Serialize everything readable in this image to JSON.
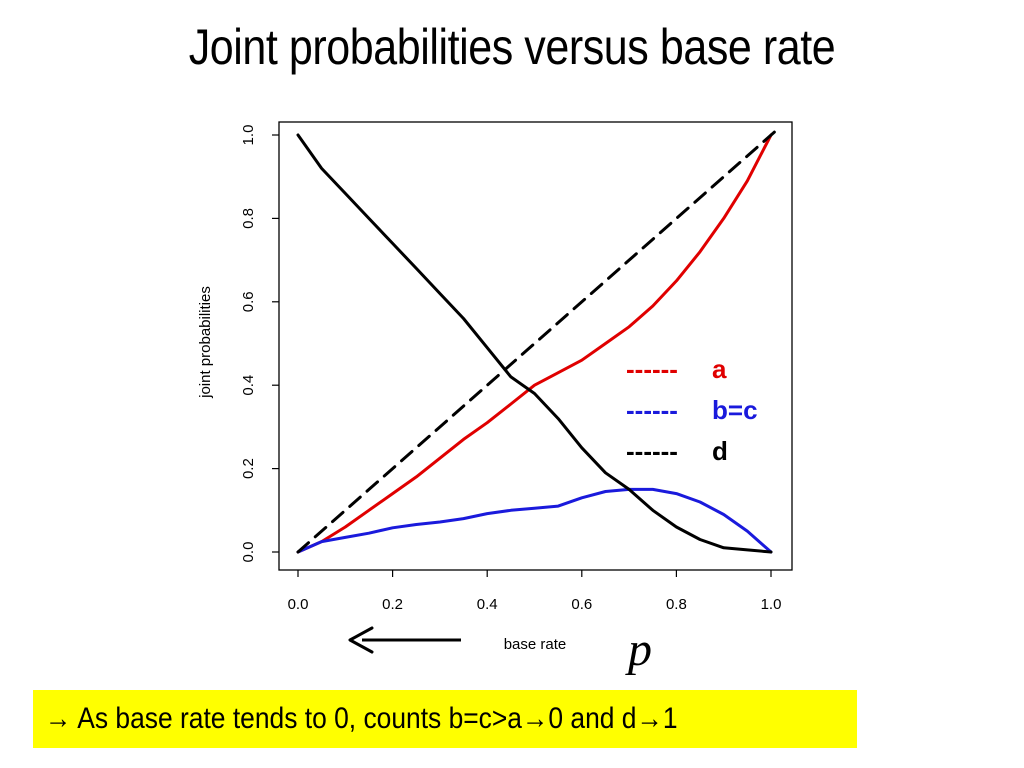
{
  "slide": {
    "title": "Joint probabilities versus base rate",
    "callout": {
      "prefix_arrow": "→",
      "text_1": " As base rate tends to 0, counts b=c>a",
      "arrow_2": "→",
      "text_2": "0 and d",
      "arrow_3": "→",
      "text_3": "1",
      "background": "#ffff00"
    },
    "p_symbol": "p"
  },
  "chart_data": {
    "type": "line",
    "xlabel": "base rate",
    "ylabel": "joint probabilities",
    "xlim": [
      0,
      1
    ],
    "ylim": [
      0,
      1
    ],
    "x_ticks": [
      "0.0",
      "0.2",
      "0.4",
      "0.6",
      "0.8",
      "1.0"
    ],
    "y_ticks": [
      "0.0",
      "0.2",
      "0.4",
      "0.6",
      "0.8",
      "1.0"
    ],
    "grid": false,
    "legend_position": "right",
    "legend": [
      {
        "marker": "------",
        "label": "a",
        "color": "#e00000"
      },
      {
        "marker": "------",
        "label": "b=c",
        "color": "#1a1adc"
      },
      {
        "marker": "------",
        "label": "d",
        "color": "#000000"
      }
    ],
    "series": [
      {
        "key": "a",
        "color": "#e00000",
        "dash": "solid",
        "x": [
          0.0,
          0.05,
          0.1,
          0.15,
          0.2,
          0.25,
          0.3,
          0.35,
          0.4,
          0.45,
          0.5,
          0.55,
          0.6,
          0.65,
          0.7,
          0.75,
          0.8,
          0.85,
          0.9,
          0.95,
          1.0
        ],
        "y": [
          0.0,
          0.025,
          0.06,
          0.1,
          0.14,
          0.18,
          0.225,
          0.27,
          0.31,
          0.355,
          0.4,
          0.43,
          0.46,
          0.5,
          0.54,
          0.59,
          0.65,
          0.72,
          0.8,
          0.89,
          1.0
        ]
      },
      {
        "key": "b=c",
        "color": "#1a1adc",
        "dash": "solid",
        "x": [
          0.0,
          0.05,
          0.1,
          0.15,
          0.2,
          0.25,
          0.3,
          0.35,
          0.4,
          0.45,
          0.5,
          0.55,
          0.6,
          0.65,
          0.7,
          0.75,
          0.8,
          0.85,
          0.9,
          0.95,
          1.0
        ],
        "y": [
          0.0,
          0.025,
          0.035,
          0.045,
          0.058,
          0.066,
          0.072,
          0.08,
          0.092,
          0.1,
          0.105,
          0.11,
          0.13,
          0.145,
          0.15,
          0.15,
          0.14,
          0.12,
          0.09,
          0.05,
          0.0
        ]
      },
      {
        "key": "d",
        "color": "#000000",
        "dash": "solid",
        "x": [
          0.0,
          0.05,
          0.1,
          0.15,
          0.2,
          0.25,
          0.3,
          0.35,
          0.4,
          0.45,
          0.5,
          0.55,
          0.6,
          0.65,
          0.7,
          0.75,
          0.8,
          0.85,
          0.9,
          0.95,
          1.0
        ],
        "y": [
          1.0,
          0.92,
          0.86,
          0.8,
          0.74,
          0.68,
          0.62,
          0.56,
          0.49,
          0.42,
          0.38,
          0.32,
          0.25,
          0.19,
          0.15,
          0.1,
          0.06,
          0.03,
          0.01,
          0.005,
          0.0
        ]
      },
      {
        "key": "reference",
        "color": "#000000",
        "dash": "dashed",
        "x": [
          0.0,
          1.02
        ],
        "y": [
          0.0,
          1.02
        ]
      }
    ]
  }
}
